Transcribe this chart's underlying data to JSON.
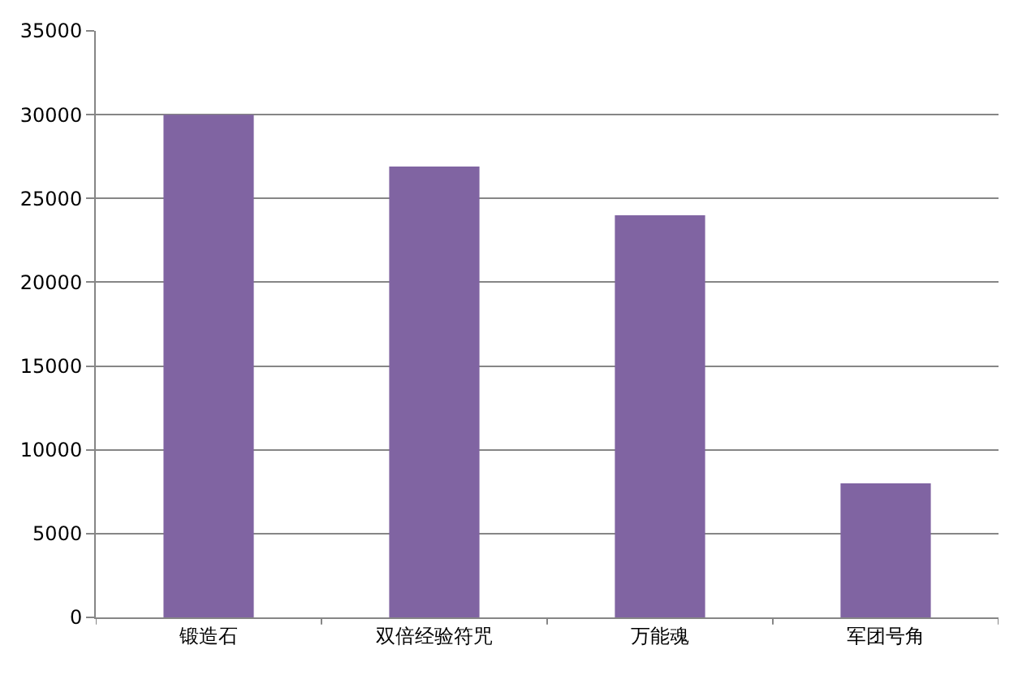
{
  "chart_data": {
    "type": "bar",
    "categories": [
      "锻造石",
      "双倍经验符咒",
      "万能魂",
      "军团号角"
    ],
    "values": [
      30000,
      26900,
      24000,
      8000
    ],
    "color": "#8064a2",
    "ylim": [
      0,
      35000
    ],
    "yticks": [
      0,
      5000,
      10000,
      15000,
      20000,
      25000,
      30000,
      35000
    ],
    "grid": "y"
  }
}
